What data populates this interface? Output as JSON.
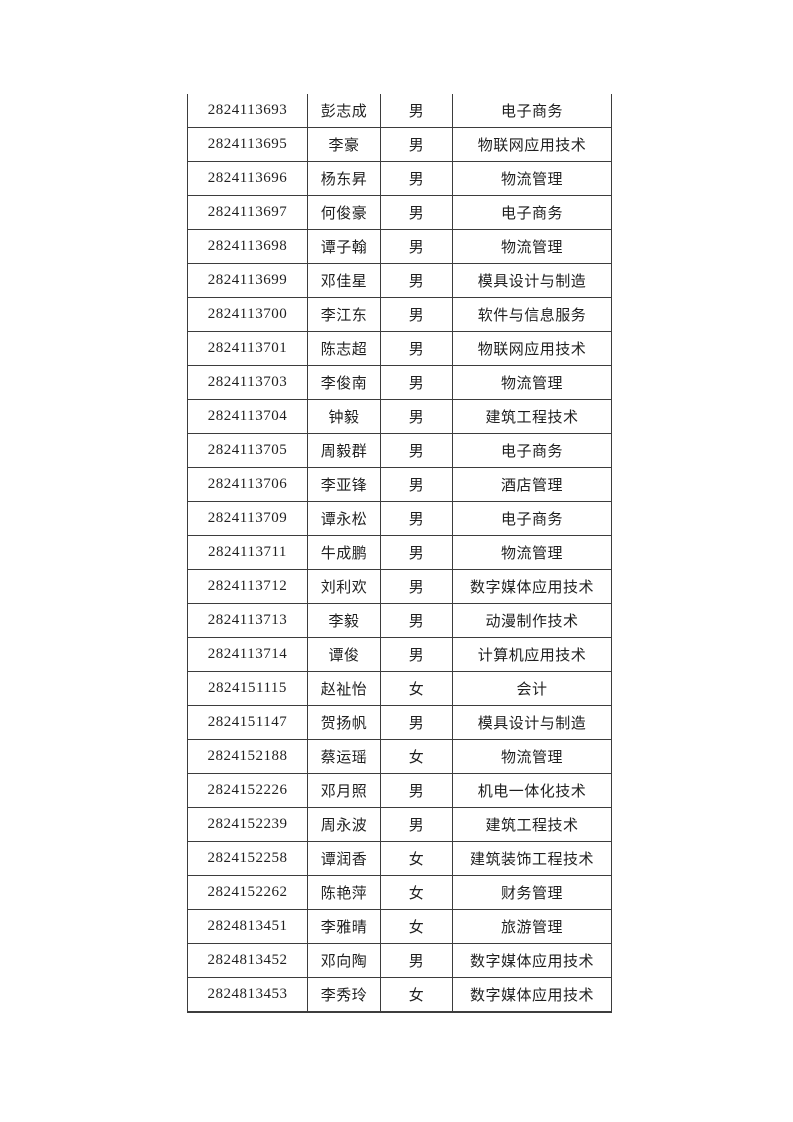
{
  "page": {
    "background_color": "#ffffff",
    "text_color": "#1f1f1f",
    "border_color": "#3d3d3d"
  },
  "table": {
    "rows": [
      {
        "id": "2824113693",
        "name": "彭志成",
        "gender": "男",
        "major": "电子商务"
      },
      {
        "id": "2824113695",
        "name": "李豪",
        "gender": "男",
        "major": "物联网应用技术"
      },
      {
        "id": "2824113696",
        "name": "杨东昇",
        "gender": "男",
        "major": "物流管理"
      },
      {
        "id": "2824113697",
        "name": "何俊豪",
        "gender": "男",
        "major": "电子商务"
      },
      {
        "id": "2824113698",
        "name": "谭子翰",
        "gender": "男",
        "major": "物流管理"
      },
      {
        "id": "2824113699",
        "name": "邓佳星",
        "gender": "男",
        "major": "模具设计与制造"
      },
      {
        "id": "2824113700",
        "name": "李江东",
        "gender": "男",
        "major": "软件与信息服务"
      },
      {
        "id": "2824113701",
        "name": "陈志超",
        "gender": "男",
        "major": "物联网应用技术"
      },
      {
        "id": "2824113703",
        "name": "李俊南",
        "gender": "男",
        "major": "物流管理"
      },
      {
        "id": "2824113704",
        "name": "钟毅",
        "gender": "男",
        "major": "建筑工程技术"
      },
      {
        "id": "2824113705",
        "name": "周毅群",
        "gender": "男",
        "major": "电子商务"
      },
      {
        "id": "2824113706",
        "name": "李亚锋",
        "gender": "男",
        "major": "酒店管理"
      },
      {
        "id": "2824113709",
        "name": "谭永松",
        "gender": "男",
        "major": "电子商务"
      },
      {
        "id": "2824113711",
        "name": "牛成鹏",
        "gender": "男",
        "major": "物流管理"
      },
      {
        "id": "2824113712",
        "name": "刘利欢",
        "gender": "男",
        "major": "数字媒体应用技术"
      },
      {
        "id": "2824113713",
        "name": "李毅",
        "gender": "男",
        "major": "动漫制作技术"
      },
      {
        "id": "2824113714",
        "name": "谭俊",
        "gender": "男",
        "major": "计算机应用技术"
      },
      {
        "id": "2824151115",
        "name": "赵祉怡",
        "gender": "女",
        "major": "会计"
      },
      {
        "id": "2824151147",
        "name": "贺扬帆",
        "gender": "男",
        "major": "模具设计与制造"
      },
      {
        "id": "2824152188",
        "name": "蔡运瑶",
        "gender": "女",
        "major": "物流管理"
      },
      {
        "id": "2824152226",
        "name": "邓月照",
        "gender": "男",
        "major": "机电一体化技术"
      },
      {
        "id": "2824152239",
        "name": "周永波",
        "gender": "男",
        "major": "建筑工程技术"
      },
      {
        "id": "2824152258",
        "name": "谭润香",
        "gender": "女",
        "major": "建筑装饰工程技术"
      },
      {
        "id": "2824152262",
        "name": "陈艳萍",
        "gender": "女",
        "major": "财务管理"
      },
      {
        "id": "2824813451",
        "name": "李雅晴",
        "gender": "女",
        "major": "旅游管理"
      },
      {
        "id": "2824813452",
        "name": "邓向陶",
        "gender": "男",
        "major": "数字媒体应用技术"
      },
      {
        "id": "2824813453",
        "name": "李秀玲",
        "gender": "女",
        "major": "数字媒体应用技术"
      }
    ]
  }
}
